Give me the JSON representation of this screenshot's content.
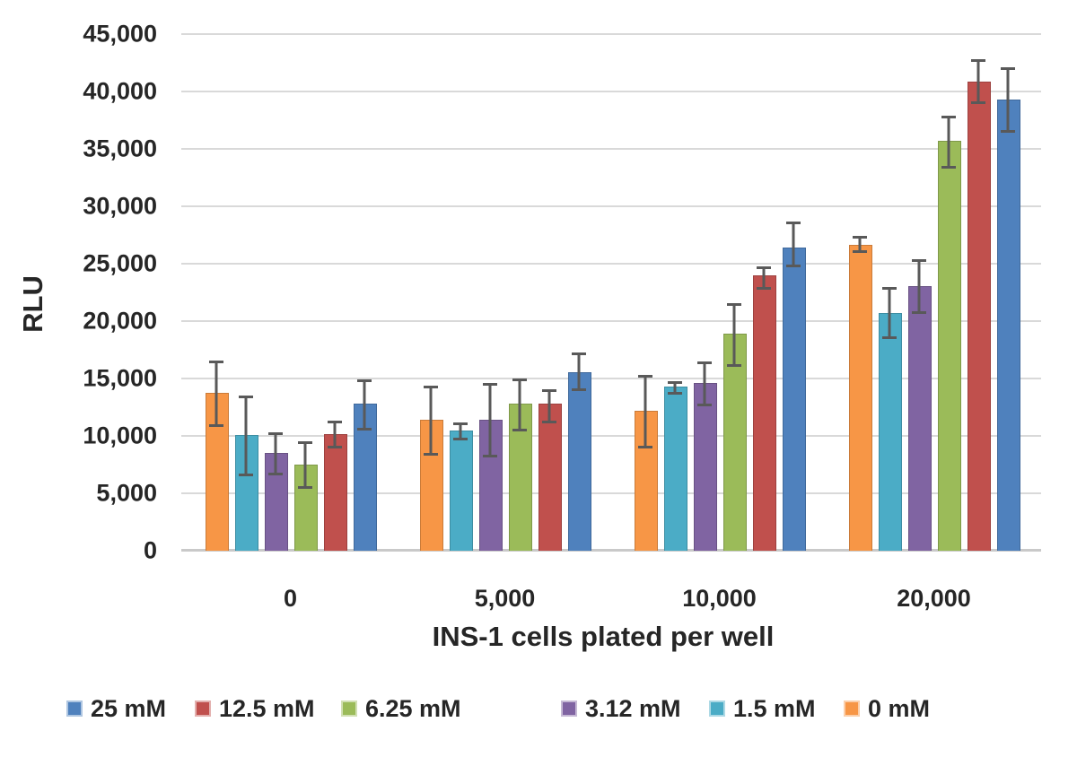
{
  "chart_data": {
    "type": "bar",
    "title": "",
    "xlabel": "INS-1 cells plated per well",
    "ylabel": "RLU",
    "categories": [
      "0",
      "5,000",
      "10,000",
      "20,000"
    ],
    "y_ticks": [
      {
        "value": 0,
        "label": "0"
      },
      {
        "value": 5000,
        "label": "5,000"
      },
      {
        "value": 10000,
        "label": "10,000"
      },
      {
        "value": 15000,
        "label": "15,000"
      },
      {
        "value": 20000,
        "label": "20,000"
      },
      {
        "value": 25000,
        "label": "25,000"
      },
      {
        "value": 30000,
        "label": "30,000"
      },
      {
        "value": 35000,
        "label": "35,000"
      },
      {
        "value": 40000,
        "label": "40,000"
      },
      {
        "value": 45000,
        "label": "45,000"
      }
    ],
    "ylim": [
      0,
      45000
    ],
    "grid": true,
    "legend_position": "bottom",
    "error_bar_color": "#595959",
    "gridline_color": "#d9d9d9",
    "bar_draw_order_per_group": [
      "0 mM",
      "1.5 mM",
      "3.12 mM",
      "6.25 mM",
      "12.5 mM",
      "25 mM"
    ],
    "series": [
      {
        "name": "25 mM",
        "color": "#4F81BD",
        "values": [
          12700,
          15500,
          26300,
          39200
        ],
        "error_high": [
          14900,
          17300,
          28700,
          42100
        ],
        "error_low": [
          10500,
          13900,
          24700,
          36400
        ]
      },
      {
        "name": "12.5 mM",
        "color": "#C0504D",
        "values": [
          10100,
          12700,
          23900,
          40800
        ],
        "error_high": [
          11300,
          14100,
          24800,
          42800
        ],
        "error_low": [
          8900,
          11100,
          22700,
          38900
        ]
      },
      {
        "name": "6.25 mM",
        "color": "#9BBB59",
        "values": [
          7400,
          12700,
          18800,
          35600
        ],
        "error_high": [
          9500,
          15000,
          21600,
          37900
        ],
        "error_low": [
          5400,
          10400,
          16000,
          33300
        ]
      },
      {
        "name": "3.12 mM",
        "color": "#8064A2",
        "values": [
          8400,
          11300,
          14500,
          23000
        ],
        "error_high": [
          10300,
          14600,
          16500,
          25400
        ],
        "error_low": [
          6600,
          8100,
          12600,
          20600
        ]
      },
      {
        "name": "1.5 mM",
        "color": "#4BACC6",
        "values": [
          10000,
          10400,
          14200,
          20600
        ],
        "error_high": [
          13500,
          11200,
          14800,
          23000
        ],
        "error_low": [
          6500,
          9600,
          13600,
          18400
        ]
      },
      {
        "name": "0 mM",
        "color": "#F79646",
        "values": [
          13700,
          11300,
          12100,
          26600
        ],
        "error_high": [
          16600,
          14400,
          15300,
          27400
        ],
        "error_low": [
          10800,
          8300,
          8900,
          25900
        ]
      }
    ]
  }
}
